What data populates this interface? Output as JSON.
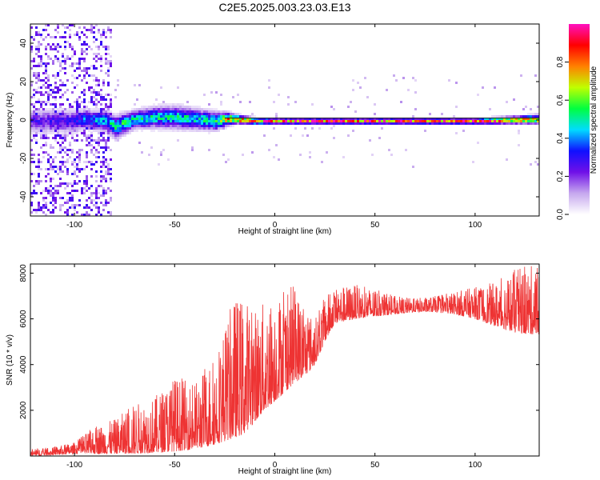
{
  "figure_title": "C2E5.2025.003.23.03.E13",
  "chart_data": [
    {
      "type": "heatmap",
      "xlabel": "Height of straight line (km)",
      "ylabel": "Frequency (Hz)",
      "xlim": [
        -122,
        132
      ],
      "ylim": [
        -50,
        50
      ],
      "xticks": [
        -100,
        -50,
        0,
        50,
        100
      ],
      "yticks": [
        -40,
        -20,
        0,
        20,
        40
      ],
      "colorbar": {
        "label": "Normalized spectral amplitude",
        "range": [
          0,
          1
        ],
        "ticks": [
          "0.0",
          "0.2",
          "0.4",
          "0.6",
          "0.8"
        ],
        "colors": [
          "#ffffff",
          "#c6a8ee",
          "#7010e8",
          "#1010ff",
          "#00dcff",
          "#00ff40",
          "#c0ff00",
          "#ff8000",
          "#ff0000",
          "#ff10c0"
        ]
      },
      "band": {
        "x": [
          -122,
          -100,
          -95,
          -85,
          -80,
          -75,
          -70,
          -60,
          -50,
          -40,
          -30,
          -25,
          -20,
          -10,
          0,
          25,
          50,
          100,
          132
        ],
        "center_hz": [
          0,
          0,
          1,
          0,
          -3,
          -1,
          1,
          2,
          2,
          1,
          0,
          1,
          1,
          0,
          0,
          0,
          0,
          0,
          1
        ],
        "width_hz": [
          10,
          10,
          8,
          9,
          10,
          9,
          8,
          9,
          10,
          9,
          8,
          6,
          4,
          3,
          2.5,
          2.5,
          2.5,
          2.5,
          4
        ],
        "peak": [
          0.25,
          0.3,
          0.4,
          0.45,
          0.5,
          0.55,
          0.5,
          0.5,
          0.5,
          0.5,
          0.55,
          0.75,
          0.85,
          0.85,
          0.9,
          0.9,
          0.9,
          0.9,
          0.8
        ]
      },
      "noise_region_x": [
        -122,
        -82
      ],
      "grid": false
    },
    {
      "type": "line",
      "xlabel": "Height of straight line (km)",
      "ylabel": "SNR (10 * v/v)",
      "xlim": [
        -122,
        132
      ],
      "ylim": [
        0,
        8400
      ],
      "xticks": [
        -100,
        -50,
        0,
        50,
        100
      ],
      "yticks": [
        2000,
        4000,
        6000,
        8000
      ],
      "color": "#ee3333",
      "envelope": {
        "x": [
          -122,
          -110,
          -100,
          -90,
          -80,
          -70,
          -60,
          -50,
          -40,
          -30,
          -20,
          -15,
          -10,
          -5,
          0,
          5,
          10,
          15,
          20,
          25,
          30,
          40,
          50,
          60,
          70,
          80,
          90,
          100,
          110,
          120,
          132
        ],
        "low": [
          0,
          50,
          100,
          100,
          100,
          100,
          150,
          200,
          300,
          500,
          800,
          1000,
          1500,
          2000,
          2400,
          2800,
          3200,
          3500,
          4000,
          5000,
          5800,
          6000,
          6100,
          6200,
          6300,
          6300,
          6200,
          6000,
          5700,
          5400,
          5300
        ],
        "high": [
          300,
          400,
          600,
          1300,
          1600,
          2300,
          2600,
          3500,
          3200,
          4500,
          7000,
          7000,
          6500,
          6800,
          7000,
          7300,
          7500,
          6500,
          6000,
          7000,
          7400,
          7500,
          7300,
          7000,
          6900,
          7000,
          7200,
          7400,
          7600,
          8200,
          8400
        ]
      },
      "grid": false
    }
  ]
}
